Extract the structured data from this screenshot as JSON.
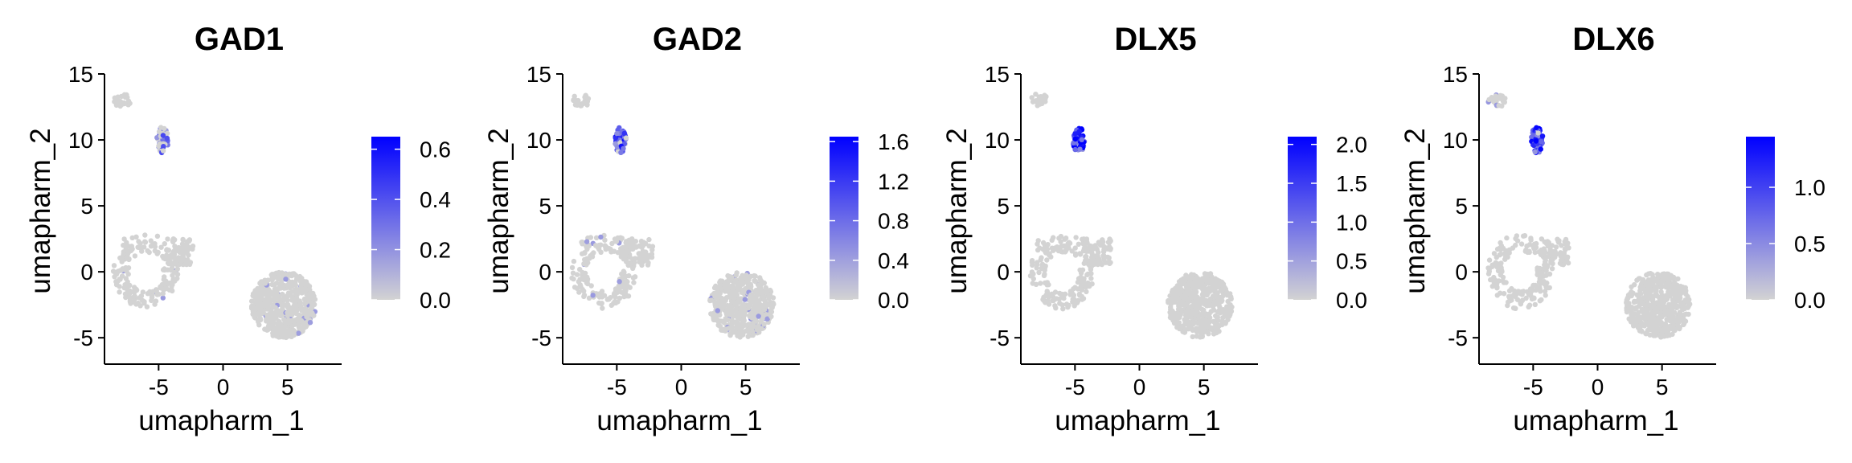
{
  "chart_data": [
    {
      "type": "scatter",
      "title": "GAD1",
      "xlabel": "umapharm_1",
      "ylabel": "umapharm_2",
      "xlim": [
        -9.2,
        9.2
      ],
      "ylim": [
        -7,
        15
      ],
      "x_ticks": [
        -5,
        0,
        5
      ],
      "y_ticks": [
        -5,
        0,
        5,
        10,
        15
      ],
      "grid": false,
      "colorbar": {
        "low_color": "#d3d3d3",
        "high_color": "#0000ff",
        "min": 0,
        "max": 0.65,
        "ticks": [
          0.0,
          0.2,
          0.4,
          0.6
        ]
      },
      "clusters": [
        {
          "name": "small-top",
          "cx": -7.8,
          "cy": 13.0,
          "rx": 0.7,
          "ry": 0.5,
          "expr": 0.0
        },
        {
          "name": "column",
          "cx": -4.7,
          "cy": 10.0,
          "rx": 0.45,
          "ry": 1.0,
          "expr": 0.45
        },
        {
          "name": "ring",
          "cx": -6.0,
          "cy": 0.0,
          "rx": 3.0,
          "ry": 2.7,
          "expr": 0.02
        },
        {
          "name": "big-right",
          "cx": 4.7,
          "cy": -2.5,
          "rx": 2.5,
          "ry": 2.5,
          "expr": 0.02
        }
      ]
    },
    {
      "type": "scatter",
      "title": "GAD2",
      "xlabel": "umapharm_1",
      "ylabel": "umapharm_2",
      "xlim": [
        -9.2,
        9.2
      ],
      "ylim": [
        -7,
        15
      ],
      "x_ticks": [
        -5,
        0,
        5
      ],
      "y_ticks": [
        -5,
        0,
        5,
        10,
        15
      ],
      "grid": false,
      "colorbar": {
        "low_color": "#d3d3d3",
        "high_color": "#0000ff",
        "min": 0,
        "max": 1.65,
        "ticks": [
          0.0,
          0.4,
          0.8,
          1.2,
          1.6
        ]
      },
      "clusters": [
        {
          "name": "small-top",
          "cx": -7.8,
          "cy": 13.0,
          "rx": 0.7,
          "ry": 0.5,
          "expr": 0.0
        },
        {
          "name": "column",
          "cx": -4.7,
          "cy": 10.0,
          "rx": 0.45,
          "ry": 1.0,
          "expr": 0.7
        },
        {
          "name": "ring",
          "cx": -6.0,
          "cy": 0.0,
          "rx": 3.0,
          "ry": 2.7,
          "expr": 0.03
        },
        {
          "name": "big-right",
          "cx": 4.7,
          "cy": -2.5,
          "rx": 2.5,
          "ry": 2.5,
          "expr": 0.03
        }
      ]
    },
    {
      "type": "scatter",
      "title": "DLX5",
      "xlabel": "umapharm_1",
      "ylabel": "umapharm_2",
      "xlim": [
        -9.2,
        9.2
      ],
      "ylim": [
        -7,
        15
      ],
      "x_ticks": [
        -5,
        0,
        5
      ],
      "y_ticks": [
        -5,
        0,
        5,
        10,
        15
      ],
      "grid": false,
      "colorbar": {
        "low_color": "#d3d3d3",
        "high_color": "#0000ff",
        "min": 0,
        "max": 2.1,
        "ticks": [
          0.0,
          0.5,
          1.0,
          1.5,
          2.0
        ]
      },
      "clusters": [
        {
          "name": "small-top",
          "cx": -7.8,
          "cy": 13.0,
          "rx": 0.7,
          "ry": 0.5,
          "expr": 0.0
        },
        {
          "name": "column",
          "cx": -4.7,
          "cy": 10.0,
          "rx": 0.45,
          "ry": 1.0,
          "expr": 0.85
        },
        {
          "name": "ring",
          "cx": -6.0,
          "cy": 0.0,
          "rx": 3.0,
          "ry": 2.7,
          "expr": 0.0
        },
        {
          "name": "big-right",
          "cx": 4.7,
          "cy": -2.5,
          "rx": 2.5,
          "ry": 2.5,
          "expr": 0.0
        }
      ]
    },
    {
      "type": "scatter",
      "title": "DLX6",
      "xlabel": "umapharm_1",
      "ylabel": "umapharm_2",
      "xlim": [
        -9.2,
        9.2
      ],
      "ylim": [
        -7,
        15
      ],
      "x_ticks": [
        -5,
        0,
        5
      ],
      "y_ticks": [
        -5,
        0,
        5,
        10,
        15
      ],
      "grid": false,
      "colorbar": {
        "low_color": "#d3d3d3",
        "high_color": "#0000ff",
        "min": 0,
        "max": 1.45,
        "ticks": [
          0.0,
          0.5,
          1.0
        ]
      },
      "clusters": [
        {
          "name": "small-top",
          "cx": -7.8,
          "cy": 13.0,
          "rx": 0.7,
          "ry": 0.5,
          "expr": 0.04
        },
        {
          "name": "column",
          "cx": -4.7,
          "cy": 10.0,
          "rx": 0.45,
          "ry": 1.0,
          "expr": 0.8
        },
        {
          "name": "ring",
          "cx": -6.0,
          "cy": 0.0,
          "rx": 3.0,
          "ry": 2.7,
          "expr": 0.0
        },
        {
          "name": "big-right",
          "cx": 4.7,
          "cy": -2.5,
          "rx": 2.5,
          "ry": 2.5,
          "expr": 0.0
        }
      ]
    }
  ]
}
